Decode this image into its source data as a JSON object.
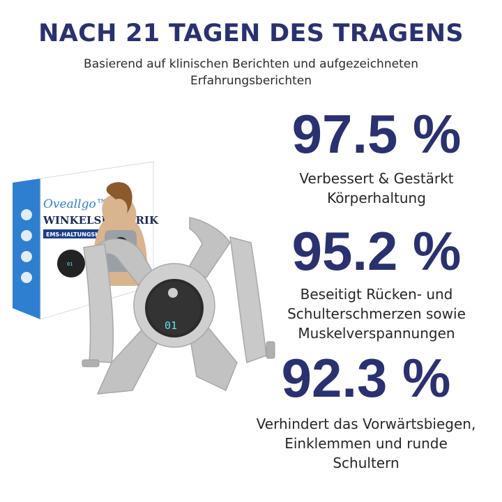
{
  "headline": "NACH 21 TAGEN DES TRAGENS",
  "subtitle": "Basierend auf klinischen Berichten und aufgezeichneten Erfahrungsberichten",
  "product": {
    "brand": "Oveallgo™",
    "name": "WINKELSENSORIK",
    "subname": "EMS-HALTUNGSKORREKTOR",
    "display": "01"
  },
  "stats": [
    {
      "value": "97.5 %",
      "lines": [
        "Verbessert & Gestärkt",
        "Körperhaltung"
      ]
    },
    {
      "value": "95.2 %",
      "lines": [
        "Beseitigt Rücken- und",
        "Schulterschmerzen sowie",
        "Muskelverspannungen"
      ]
    },
    {
      "value": "92.3 %",
      "lines": [
        "Verhindert das Vorwärtsbiegen,",
        "Einklemmen und runde",
        "Schultern"
      ]
    }
  ],
  "colors": {
    "accent": "#2a3170",
    "box_blue": "#2f7fd0",
    "strap_gray": "#bcbcbc",
    "device": "#2b2b2b",
    "display_cyan": "#5ee4f0"
  }
}
